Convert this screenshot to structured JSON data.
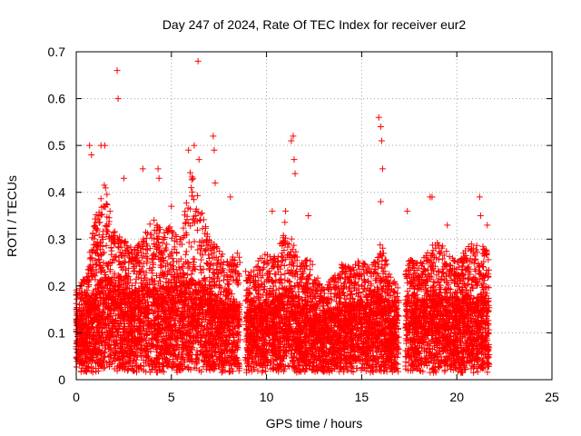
{
  "chart_data": {
    "type": "scatter",
    "title": "Day 247 of 2024, Rate Of TEC Index for receiver eur2",
    "xlabel": "GPS time / hours",
    "ylabel": "ROTI / TECUs",
    "xlim": [
      0,
      25
    ],
    "ylim": [
      0,
      0.7
    ],
    "xticks": [
      0,
      5,
      10,
      15,
      20,
      25
    ],
    "yticks": [
      0,
      0.1,
      0.2,
      0.3,
      0.4,
      0.5,
      0.6,
      0.7
    ],
    "grid": true,
    "marker": "+",
    "color": "#ff0000",
    "x_coverage_hours": [
      0,
      21.7
    ],
    "series": [
      {
        "envelope": {
          "x": [
            0,
            0.5,
            1,
            1.5,
            2,
            2.5,
            3,
            3.5,
            4,
            4.5,
            5,
            5.5,
            6,
            6.5,
            7,
            7.5,
            8,
            8.5,
            9,
            9.5,
            10,
            10.5,
            11,
            11.5,
            12,
            12.5,
            13,
            13.5,
            14,
            14.5,
            15,
            15.5,
            16,
            16.5,
            17,
            17.5,
            18,
            18.5,
            19,
            19.5,
            20,
            20.5,
            21,
            21.5
          ],
          "typical_high": [
            0.2,
            0.22,
            0.35,
            0.42,
            0.32,
            0.3,
            0.28,
            0.3,
            0.35,
            0.32,
            0.33,
            0.3,
            0.45,
            0.38,
            0.3,
            0.28,
            0.25,
            0.28,
            0.22,
            0.25,
            0.28,
            0.26,
            0.35,
            0.28,
            0.26,
            0.25,
            0.2,
            0.22,
            0.25,
            0.24,
            0.26,
            0.24,
            0.3,
            0.22,
            0.2,
            0.26,
            0.25,
            0.28,
            0.3,
            0.28,
            0.25,
            0.28,
            0.3,
            0.28
          ],
          "dense_top": [
            0.14,
            0.16,
            0.2,
            0.22,
            0.21,
            0.2,
            0.19,
            0.2,
            0.21,
            0.2,
            0.2,
            0.2,
            0.22,
            0.21,
            0.19,
            0.17,
            0.16,
            0.17,
            0.15,
            0.16,
            0.17,
            0.17,
            0.2,
            0.18,
            0.17,
            0.16,
            0.15,
            0.15,
            0.16,
            0.16,
            0.17,
            0.17,
            0.19,
            0.16,
            0.15,
            0.17,
            0.17,
            0.18,
            0.19,
            0.18,
            0.17,
            0.18,
            0.19,
            0.18
          ]
        },
        "gaps": [
          [
            8.6,
            8.9
          ],
          [
            16.95,
            17.3
          ]
        ],
        "outliers": [
          {
            "x": 0.7,
            "y": 0.5
          },
          {
            "x": 0.8,
            "y": 0.48
          },
          {
            "x": 1.3,
            "y": 0.5
          },
          {
            "x": 1.5,
            "y": 0.5
          },
          {
            "x": 2.15,
            "y": 0.66
          },
          {
            "x": 2.2,
            "y": 0.6
          },
          {
            "x": 2.5,
            "y": 0.43
          },
          {
            "x": 3.5,
            "y": 0.45
          },
          {
            "x": 4.3,
            "y": 0.45
          },
          {
            "x": 4.35,
            "y": 0.43
          },
          {
            "x": 5.0,
            "y": 0.37
          },
          {
            "x": 5.9,
            "y": 0.49
          },
          {
            "x": 6.2,
            "y": 0.5
          },
          {
            "x": 6.4,
            "y": 0.68
          },
          {
            "x": 6.45,
            "y": 0.47
          },
          {
            "x": 7.2,
            "y": 0.52
          },
          {
            "x": 7.25,
            "y": 0.49
          },
          {
            "x": 7.3,
            "y": 0.42
          },
          {
            "x": 8.1,
            "y": 0.39
          },
          {
            "x": 10.3,
            "y": 0.36
          },
          {
            "x": 11.0,
            "y": 0.36
          },
          {
            "x": 11.3,
            "y": 0.51
          },
          {
            "x": 11.4,
            "y": 0.52
          },
          {
            "x": 11.45,
            "y": 0.47
          },
          {
            "x": 11.5,
            "y": 0.44
          },
          {
            "x": 12.2,
            "y": 0.35
          },
          {
            "x": 15.9,
            "y": 0.56
          },
          {
            "x": 16.0,
            "y": 0.54
          },
          {
            "x": 16.05,
            "y": 0.51
          },
          {
            "x": 16.1,
            "y": 0.45
          },
          {
            "x": 16.0,
            "y": 0.38
          },
          {
            "x": 17.4,
            "y": 0.36
          },
          {
            "x": 18.6,
            "y": 0.39
          },
          {
            "x": 18.7,
            "y": 0.39
          },
          {
            "x": 19.5,
            "y": 0.33
          },
          {
            "x": 21.2,
            "y": 0.39
          },
          {
            "x": 21.25,
            "y": 0.35
          },
          {
            "x": 21.6,
            "y": 0.33
          }
        ]
      }
    ]
  }
}
